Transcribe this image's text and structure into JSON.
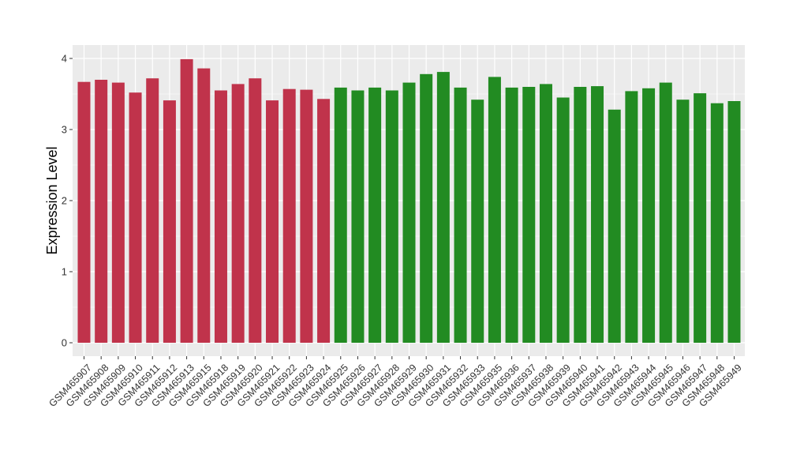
{
  "chart_data": {
    "type": "bar",
    "title": "",
    "xlabel": "",
    "ylabel": "Expression Level",
    "ylim": [
      0,
      4.2
    ],
    "yticks": [
      "0",
      "1",
      "2",
      "3",
      "4"
    ],
    "grid": true,
    "legend": "none",
    "colors": {
      "group1": "#C0334B",
      "group2": "#228B22",
      "panel": "#EBEBEB",
      "grid": "#FFFFFF"
    },
    "categories": [
      "GSM465907",
      "GSM465908",
      "GSM465909",
      "GSM465910",
      "GSM465911",
      "GSM465912",
      "GSM465913",
      "GSM465915",
      "GSM465918",
      "GSM465919",
      "GSM465920",
      "GSM465921",
      "GSM465922",
      "GSM465923",
      "GSM465924",
      "GSM465925",
      "GSM465926",
      "GSM465927",
      "GSM465928",
      "GSM465929",
      "GSM465930",
      "GSM465931",
      "GSM465932",
      "GSM465933",
      "GSM465935",
      "GSM465936",
      "GSM465937",
      "GSM465938",
      "GSM465939",
      "GSM465940",
      "GSM465941",
      "GSM465942",
      "GSM465943",
      "GSM465944",
      "GSM465945",
      "GSM465946",
      "GSM465947",
      "GSM465948",
      "GSM465949"
    ],
    "values": [
      3.67,
      3.7,
      3.66,
      3.52,
      3.72,
      3.41,
      3.99,
      3.86,
      3.55,
      3.64,
      3.72,
      3.41,
      3.57,
      3.56,
      3.43,
      3.59,
      3.55,
      3.59,
      3.55,
      3.66,
      3.78,
      3.81,
      3.59,
      3.42,
      3.74,
      3.59,
      3.6,
      3.64,
      3.45,
      3.6,
      3.61,
      3.28,
      3.54,
      3.58,
      3.66,
      3.42,
      3.51,
      3.37,
      3.4
    ],
    "groups": [
      "group1",
      "group1",
      "group1",
      "group1",
      "group1",
      "group1",
      "group1",
      "group1",
      "group1",
      "group1",
      "group1",
      "group1",
      "group1",
      "group1",
      "group1",
      "group2",
      "group2",
      "group2",
      "group2",
      "group2",
      "group2",
      "group2",
      "group2",
      "group2",
      "group2",
      "group2",
      "group2",
      "group2",
      "group2",
      "group2",
      "group2",
      "group2",
      "group2",
      "group2",
      "group2",
      "group2",
      "group2",
      "group2",
      "group2"
    ]
  }
}
